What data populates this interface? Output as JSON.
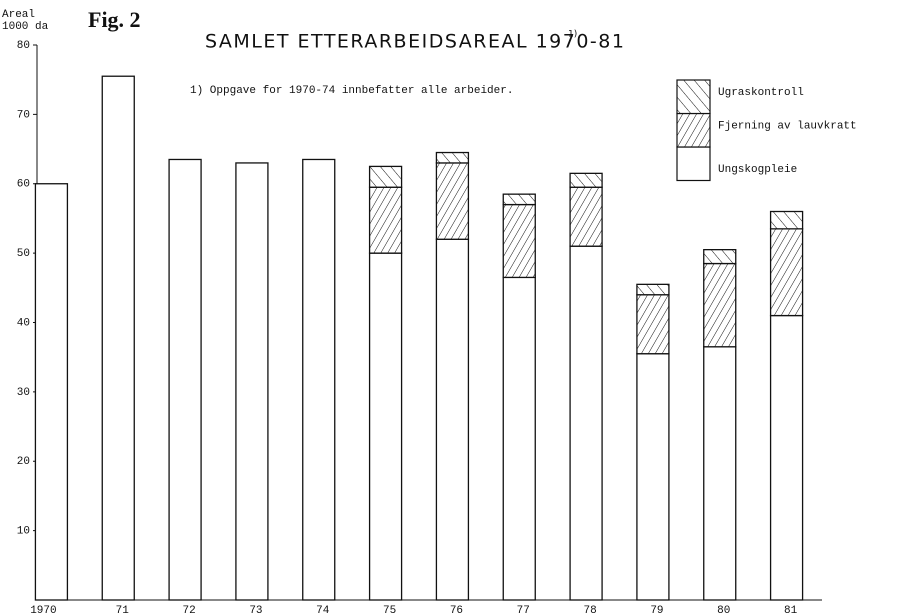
{
  "chart_data": {
    "type": "stacked_bar",
    "figure_label": "Fig. 2",
    "title": "SAMLET ETTERARBEIDSAREAL 1970-81",
    "title_note_ref": "1)",
    "note": "1) Oppgave for 1970-74 innbefatter alle arbeider.",
    "y_label": [
      "Areal",
      "1000 da"
    ],
    "categories": [
      "1970",
      "71",
      "72",
      "73",
      "74",
      "75",
      "76",
      "77",
      "78",
      "79",
      "80",
      "81"
    ],
    "series": [
      {
        "name": "Ungskogpleie",
        "color": "#ffffff",
        "pattern": "none",
        "values": [
          60,
          75.5,
          63.5,
          63,
          63.5,
          50,
          52,
          46.5,
          51,
          35.5,
          36.5,
          41
        ]
      },
      {
        "name": "Fjerning av lauvkratt",
        "color": "#ffffff",
        "pattern": "dense-forward",
        "values": [
          null,
          null,
          null,
          null,
          null,
          9.5,
          11,
          10.5,
          8.5,
          8.5,
          12,
          12.5
        ]
      },
      {
        "name": "Ugraskontroll",
        "color": "#ffffff",
        "pattern": "sparse-backward",
        "values": [
          null,
          null,
          null,
          null,
          null,
          3,
          1.5,
          1.5,
          2,
          1.5,
          2,
          2.5
        ]
      }
    ],
    "ylim": [
      0,
      80
    ],
    "yticks": [
      10,
      20,
      30,
      40,
      50,
      60,
      70,
      80
    ],
    "grid": false,
    "legend": "top-right"
  }
}
